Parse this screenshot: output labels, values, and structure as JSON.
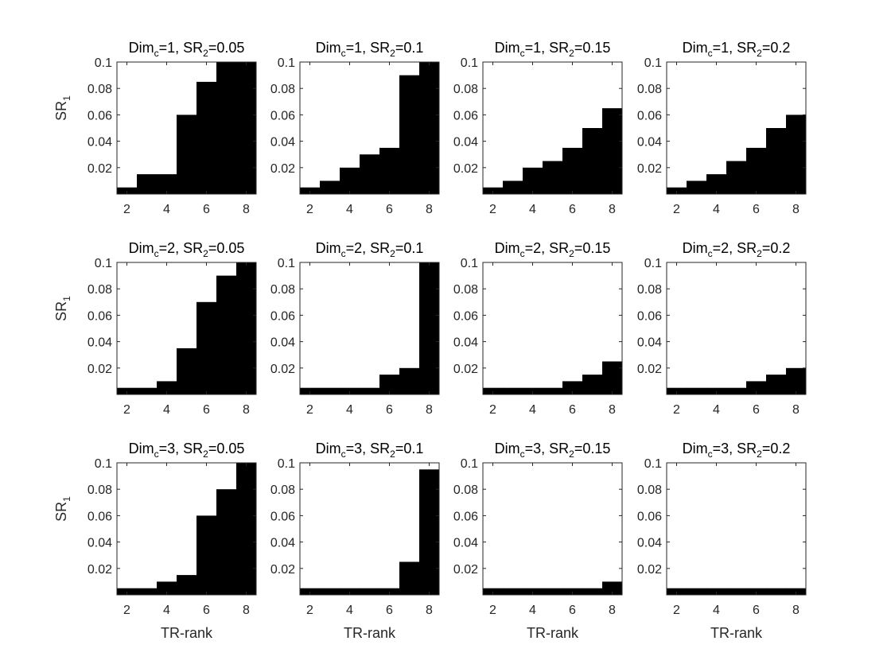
{
  "colors": {
    "background": "#ffffff",
    "fill": "#000000",
    "axis": "#262626"
  },
  "chart_data": [
    {
      "type": "bar",
      "title": {
        "prefix": "Dim",
        "sub1": "c",
        "mid": "=1, SR",
        "sub2": "2",
        "suffix": "=0.05"
      },
      "x": [
        2,
        3,
        4,
        5,
        6,
        7,
        8
      ],
      "values": [
        0.005,
        0.015,
        0.015,
        0.06,
        0.085,
        0.1,
        0.1
      ],
      "xlim": [
        1.5,
        8.5
      ],
      "ylim": [
        0.0,
        0.1
      ],
      "xticks": [
        "2",
        "4",
        "6",
        "8"
      ],
      "yticks": [
        "0.02",
        "0.04",
        "0.06",
        "0.08",
        "0.1"
      ],
      "ylabel": {
        "main": "SR",
        "sub": "1"
      },
      "xlabel": ""
    },
    {
      "type": "bar",
      "title": {
        "prefix": "Dim",
        "sub1": "c",
        "mid": "=1, SR",
        "sub2": "2",
        "suffix": "=0.1"
      },
      "x": [
        2,
        3,
        4,
        5,
        6,
        7,
        8
      ],
      "values": [
        0.005,
        0.01,
        0.02,
        0.03,
        0.035,
        0.09,
        0.1
      ],
      "xlim": [
        1.5,
        8.5
      ],
      "ylim": [
        0.0,
        0.1
      ],
      "xticks": [
        "2",
        "4",
        "6",
        "8"
      ],
      "yticks": [
        "0.02",
        "0.04",
        "0.06",
        "0.08",
        "0.1"
      ],
      "ylabel": null,
      "xlabel": ""
    },
    {
      "type": "bar",
      "title": {
        "prefix": "Dim",
        "sub1": "c",
        "mid": "=1, SR",
        "sub2": "2",
        "suffix": "=0.15"
      },
      "x": [
        2,
        3,
        4,
        5,
        6,
        7,
        8
      ],
      "values": [
        0.005,
        0.01,
        0.02,
        0.025,
        0.035,
        0.05,
        0.065
      ],
      "xlim": [
        1.5,
        8.5
      ],
      "ylim": [
        0.0,
        0.1
      ],
      "xticks": [
        "2",
        "4",
        "6",
        "8"
      ],
      "yticks": [
        "0.02",
        "0.04",
        "0.06",
        "0.08",
        "0.1"
      ],
      "ylabel": null,
      "xlabel": ""
    },
    {
      "type": "bar",
      "title": {
        "prefix": "Dim",
        "sub1": "c",
        "mid": "=1, SR",
        "sub2": "2",
        "suffix": "=0.2"
      },
      "x": [
        2,
        3,
        4,
        5,
        6,
        7,
        8
      ],
      "values": [
        0.005,
        0.01,
        0.015,
        0.025,
        0.035,
        0.05,
        0.06
      ],
      "xlim": [
        1.5,
        8.5
      ],
      "ylim": [
        0.0,
        0.1
      ],
      "xticks": [
        "2",
        "4",
        "6",
        "8"
      ],
      "yticks": [
        "0.02",
        "0.04",
        "0.06",
        "0.08",
        "0.1"
      ],
      "ylabel": null,
      "xlabel": ""
    },
    {
      "type": "bar",
      "title": {
        "prefix": "Dim",
        "sub1": "c",
        "mid": "=2, SR",
        "sub2": "2",
        "suffix": "=0.05"
      },
      "x": [
        2,
        3,
        4,
        5,
        6,
        7,
        8
      ],
      "values": [
        0.005,
        0.005,
        0.01,
        0.035,
        0.07,
        0.09,
        0.1
      ],
      "xlim": [
        1.5,
        8.5
      ],
      "ylim": [
        0.0,
        0.1
      ],
      "xticks": [
        "2",
        "4",
        "6",
        "8"
      ],
      "yticks": [
        "0.02",
        "0.04",
        "0.06",
        "0.08",
        "0.1"
      ],
      "ylabel": {
        "main": "SR",
        "sub": "1"
      },
      "xlabel": ""
    },
    {
      "type": "bar",
      "title": {
        "prefix": "Dim",
        "sub1": "c",
        "mid": "=2, SR",
        "sub2": "2",
        "suffix": "=0.1"
      },
      "x": [
        2,
        3,
        4,
        5,
        6,
        7,
        8
      ],
      "values": [
        0.005,
        0.005,
        0.005,
        0.005,
        0.015,
        0.02,
        0.1
      ],
      "xlim": [
        1.5,
        8.5
      ],
      "ylim": [
        0.0,
        0.1
      ],
      "xticks": [
        "2",
        "4",
        "6",
        "8"
      ],
      "yticks": [
        "0.02",
        "0.04",
        "0.06",
        "0.08",
        "0.1"
      ],
      "ylabel": null,
      "xlabel": ""
    },
    {
      "type": "bar",
      "title": {
        "prefix": "Dim",
        "sub1": "c",
        "mid": "=2, SR",
        "sub2": "2",
        "suffix": "=0.15"
      },
      "x": [
        2,
        3,
        4,
        5,
        6,
        7,
        8
      ],
      "values": [
        0.005,
        0.005,
        0.005,
        0.005,
        0.01,
        0.015,
        0.025
      ],
      "xlim": [
        1.5,
        8.5
      ],
      "ylim": [
        0.0,
        0.1
      ],
      "xticks": [
        "2",
        "4",
        "6",
        "8"
      ],
      "yticks": [
        "0.02",
        "0.04",
        "0.06",
        "0.08",
        "0.1"
      ],
      "ylabel": null,
      "xlabel": ""
    },
    {
      "type": "bar",
      "title": {
        "prefix": "Dim",
        "sub1": "c",
        "mid": "=2, SR",
        "sub2": "2",
        "suffix": "=0.2"
      },
      "x": [
        2,
        3,
        4,
        5,
        6,
        7,
        8
      ],
      "values": [
        0.005,
        0.005,
        0.005,
        0.005,
        0.01,
        0.015,
        0.02
      ],
      "xlim": [
        1.5,
        8.5
      ],
      "ylim": [
        0.0,
        0.1
      ],
      "xticks": [
        "2",
        "4",
        "6",
        "8"
      ],
      "yticks": [
        "0.02",
        "0.04",
        "0.06",
        "0.08",
        "0.1"
      ],
      "ylabel": null,
      "xlabel": ""
    },
    {
      "type": "bar",
      "title": {
        "prefix": "Dim",
        "sub1": "c",
        "mid": "=3, SR",
        "sub2": "2",
        "suffix": "=0.05"
      },
      "x": [
        2,
        3,
        4,
        5,
        6,
        7,
        8
      ],
      "values": [
        0.005,
        0.005,
        0.01,
        0.015,
        0.06,
        0.08,
        0.1
      ],
      "xlim": [
        1.5,
        8.5
      ],
      "ylim": [
        0.0,
        0.1
      ],
      "xticks": [
        "2",
        "4",
        "6",
        "8"
      ],
      "yticks": [
        "0.02",
        "0.04",
        "0.06",
        "0.08",
        "0.1"
      ],
      "ylabel": {
        "main": "SR",
        "sub": "1"
      },
      "xlabel": "TR-rank"
    },
    {
      "type": "bar",
      "title": {
        "prefix": "Dim",
        "sub1": "c",
        "mid": "=3, SR",
        "sub2": "2",
        "suffix": "=0.1"
      },
      "x": [
        2,
        3,
        4,
        5,
        6,
        7,
        8
      ],
      "values": [
        0.005,
        0.005,
        0.005,
        0.005,
        0.005,
        0.025,
        0.095
      ],
      "xlim": [
        1.5,
        8.5
      ],
      "ylim": [
        0.0,
        0.1
      ],
      "xticks": [
        "2",
        "4",
        "6",
        "8"
      ],
      "yticks": [
        "0.02",
        "0.04",
        "0.06",
        "0.08",
        "0.1"
      ],
      "ylabel": null,
      "xlabel": "TR-rank"
    },
    {
      "type": "bar",
      "title": {
        "prefix": "Dim",
        "sub1": "c",
        "mid": "=3, SR",
        "sub2": "2",
        "suffix": "=0.15"
      },
      "x": [
        2,
        3,
        4,
        5,
        6,
        7,
        8
      ],
      "values": [
        0.005,
        0.005,
        0.005,
        0.005,
        0.005,
        0.005,
        0.01
      ],
      "xlim": [
        1.5,
        8.5
      ],
      "ylim": [
        0.0,
        0.1
      ],
      "xticks": [
        "2",
        "4",
        "6",
        "8"
      ],
      "yticks": [
        "0.02",
        "0.04",
        "0.06",
        "0.08",
        "0.1"
      ],
      "ylabel": null,
      "xlabel": "TR-rank"
    },
    {
      "type": "bar",
      "title": {
        "prefix": "Dim",
        "sub1": "c",
        "mid": "=3, SR",
        "sub2": "2",
        "suffix": "=0.2"
      },
      "x": [
        2,
        3,
        4,
        5,
        6,
        7,
        8
      ],
      "values": [
        0.005,
        0.005,
        0.005,
        0.005,
        0.005,
        0.005,
        0.005
      ],
      "xlim": [
        1.5,
        8.5
      ],
      "ylim": [
        0.0,
        0.1
      ],
      "xticks": [
        "2",
        "4",
        "6",
        "8"
      ],
      "yticks": [
        "0.02",
        "0.04",
        "0.06",
        "0.08",
        "0.1"
      ],
      "ylabel": null,
      "xlabel": "TR-rank"
    }
  ]
}
